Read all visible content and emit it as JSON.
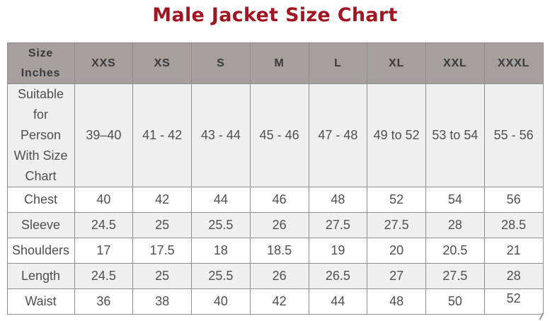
{
  "title": "Male Jacket Size Chart",
  "colors": {
    "title_color": "#9e1722",
    "header_bg": "#a79e9e",
    "stripe_bg": "#f0efef",
    "border": "#8d8d8d",
    "body_text": "#4f4f4f",
    "header_text": "#3a3a3a"
  },
  "table": {
    "header": [
      "Size Inches",
      "XXS",
      "XS",
      "S",
      "M",
      "L",
      "XL",
      "XXL",
      "XXXL"
    ],
    "rows": [
      {
        "label": "Suitable for Person With Size Chart",
        "values": [
          "39–40",
          "41 - 42",
          "43 - 44",
          "45 - 46",
          "47 - 48",
          "49 to 52",
          "53 to 54",
          "55 - 56"
        ]
      },
      {
        "label": "Chest",
        "values": [
          "40",
          "42",
          "44",
          "46",
          "48",
          "52",
          "54",
          "56"
        ]
      },
      {
        "label": "Sleeve",
        "values": [
          "24.5",
          "25",
          "25.5",
          "26",
          "27.5",
          "27.5",
          "28",
          "28.5"
        ]
      },
      {
        "label": "Shoulders",
        "values": [
          "17",
          "17.5",
          "18",
          "18.5",
          "19",
          "20",
          "20.5",
          "21"
        ]
      },
      {
        "label": "Length",
        "values": [
          "24.5",
          "25",
          "25.5",
          "26",
          "26.5",
          "27",
          "27.5",
          "28"
        ]
      },
      {
        "label": "Waist",
        "values": [
          "36",
          "38",
          "40",
          "42",
          "44",
          "48",
          "50",
          "52"
        ]
      }
    ]
  }
}
